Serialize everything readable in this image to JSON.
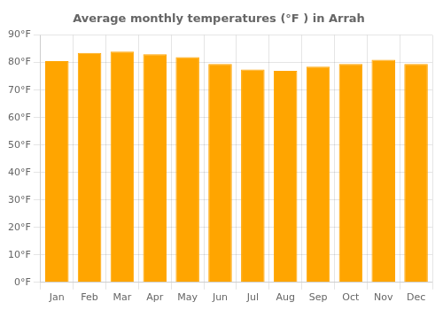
{
  "chart_data": {
    "type": "bar",
    "title": "Average monthly temperatures (°F ) in Arrah",
    "categories": [
      "Jan",
      "Feb",
      "Mar",
      "Apr",
      "May",
      "Jun",
      "Jul",
      "Aug",
      "Sep",
      "Oct",
      "Nov",
      "Dec"
    ],
    "values": [
      80.5,
      83.5,
      84.0,
      83.0,
      82.0,
      79.5,
      77.5,
      77.0,
      78.5,
      79.5,
      81.0,
      79.5
    ],
    "color": "#FFA500",
    "ylim": [
      0,
      90
    ],
    "yticks": [
      {
        "value": 0,
        "label": "0°F"
      },
      {
        "value": 10,
        "label": "10°F"
      },
      {
        "value": 20,
        "label": "20°F"
      },
      {
        "value": 30,
        "label": "30°F"
      },
      {
        "value": 40,
        "label": "40°F"
      },
      {
        "value": 50,
        "label": "50°F"
      },
      {
        "value": 60,
        "label": "60°F"
      },
      {
        "value": 70,
        "label": "70°F"
      },
      {
        "value": 80,
        "label": "80°F"
      },
      {
        "value": 90,
        "label": "90°F"
      }
    ],
    "grid": true
  }
}
